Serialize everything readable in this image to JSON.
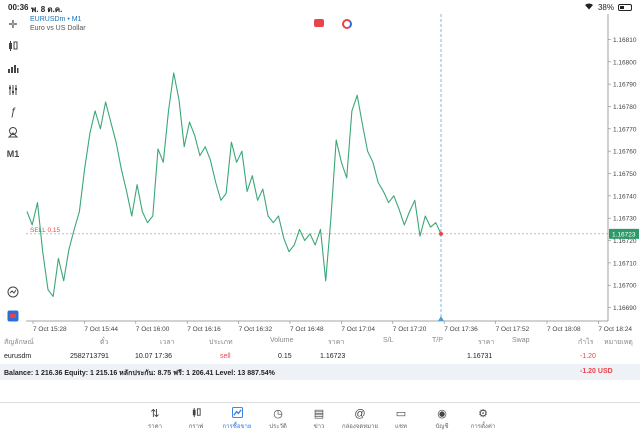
{
  "status_bar": {
    "time": "00:36",
    "date": "พ. 8 ต.ค.",
    "battery": "38%",
    "battery_level": 0.38
  },
  "chart_header": {
    "symbol": "EURUSDm • M1",
    "description": "Euro vs US Dollar"
  },
  "toolbar": {
    "timeframe": "M1",
    "icons": [
      "crosshair-icon",
      "candlestick-icon",
      "bars-icon",
      "indicators-icon",
      "function-icon",
      "objects-icon",
      "timeframe-label",
      "zoom-icon",
      "one-click-icon"
    ]
  },
  "chart_data": {
    "type": "line",
    "series": [
      {
        "values": [
          1.16733,
          1.16727,
          1.16737,
          1.16715,
          1.16698,
          1.16695,
          1.16712,
          1.16702,
          1.16716,
          1.16725,
          1.16733,
          1.16752,
          1.16768,
          1.16778,
          1.1677,
          1.16782,
          1.16773,
          1.16764,
          1.16752,
          1.16742,
          1.16731,
          1.16745,
          1.16733,
          1.16728,
          1.16731,
          1.16761,
          1.16755,
          1.16778,
          1.16795,
          1.16783,
          1.16762,
          1.16773,
          1.16767,
          1.16758,
          1.16762,
          1.16756,
          1.16746,
          1.16738,
          1.16741,
          1.16764,
          1.16755,
          1.1676,
          1.16742,
          1.16749,
          1.16738,
          1.16743,
          1.16731,
          1.16728,
          1.16731,
          1.16721,
          1.16715,
          1.16718,
          1.16725,
          1.1672,
          1.16723,
          1.16718,
          1.16725,
          1.16702,
          1.1673,
          1.16765,
          1.16755,
          1.16748,
          1.16778,
          1.16785,
          1.16772,
          1.1676,
          1.16755,
          1.16746,
          1.16742,
          1.16737,
          1.1674,
          1.16734,
          1.16727,
          1.16733,
          1.16738,
          1.16722,
          1.16731,
          1.16726,
          1.16728,
          1.16723
        ]
      }
    ],
    "x_tick_labels": [
      "7 Oct 15:28",
      "7 Oct 15:44",
      "7 Oct 16:00",
      "7 Oct 16:16",
      "7 Oct 16:32",
      "7 Oct 16:48",
      "7 Oct 17:04",
      "7 Oct 17:20",
      "7 Oct 17:36",
      "7 Oct 17:52",
      "7 Oct 18:08",
      "7 Oct 18:24"
    ],
    "y_ticks": [
      1.1669,
      1.167,
      1.1671,
      1.1672,
      1.1673,
      1.1674,
      1.1675,
      1.1676,
      1.1677,
      1.1678,
      1.1679,
      1.168,
      1.1681
    ],
    "ylim": [
      1.16684,
      1.16816
    ],
    "current_price": "1.16723",
    "sell_level_label": "SELL 0.15",
    "sell_level": 1.16723,
    "line_color": "#3aa876",
    "price_tag_color": "#2e9a6a",
    "sell_color": "#e8454a",
    "crosshair_color": "#4a9fd6"
  },
  "table": {
    "headers": [
      "สัญลักษณ์",
      "ตั๋ว",
      "เวลา",
      "ประเภท",
      "Volume",
      "ราคา",
      "S/L",
      "T/P",
      "ราคา",
      "Swap",
      "กำไร",
      "หมายเหตุ"
    ],
    "row": {
      "symbol": "eurusdm",
      "ticket": "2582713791",
      "time": "10.07 17:36",
      "type": "sell",
      "volume": "0.15",
      "price": "1.16723",
      "sl": "",
      "tp": "",
      "current_price": "1.16731",
      "swap": "",
      "profit": "-1.20",
      "comment": ""
    }
  },
  "balance": {
    "text": "Balance: 1 216.36 Equity: 1 215.16 หลักประกัน: 8.75 ฟรี: 1 206.41 Level: 13 887.54%",
    "pl": "-1.20 USD"
  },
  "nav": [
    {
      "label": "ราคา",
      "icon": "quotes-icon"
    },
    {
      "label": "กราฟ",
      "icon": "chart-icon"
    },
    {
      "label": "การซื้อขาย",
      "icon": "trade-icon",
      "active": true
    },
    {
      "label": "ประวัติ",
      "icon": "history-icon"
    },
    {
      "label": "ข่าว",
      "icon": "news-icon"
    },
    {
      "label": "กล่องจดหมาย",
      "icon": "mailbox-icon"
    },
    {
      "label": "แชท",
      "icon": "chat-icon"
    },
    {
      "label": "บัญชี",
      "icon": "account-icon"
    },
    {
      "label": "การตั้งค่า",
      "icon": "settings-icon"
    }
  ]
}
